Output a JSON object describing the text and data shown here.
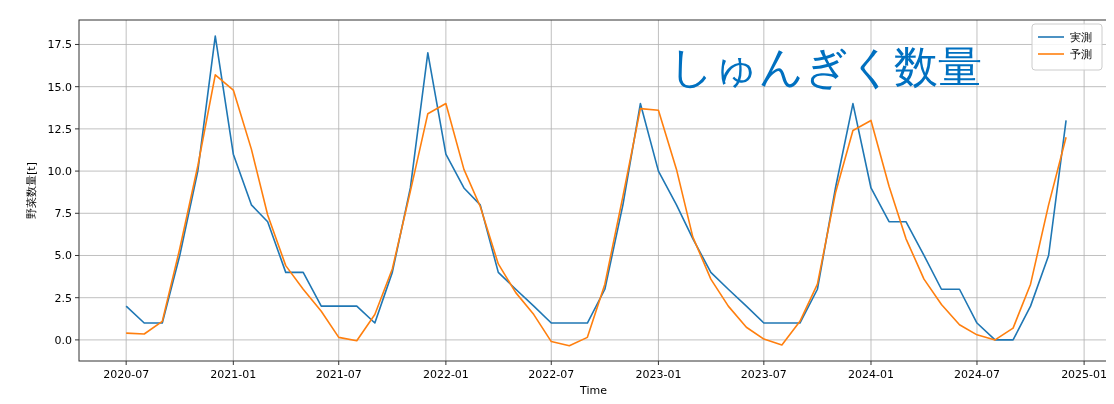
{
  "chart_data": {
    "type": "line",
    "title": "しゅんぎく数量",
    "xlabel": "Time",
    "ylabel": "野菜数量[t]",
    "x": [
      "2020-07",
      "2020-08",
      "2020-09",
      "2020-10",
      "2020-11",
      "2020-12",
      "2021-01",
      "2021-02",
      "2021-03",
      "2021-04",
      "2021-05",
      "2021-06",
      "2021-07",
      "2021-08",
      "2021-09",
      "2021-10",
      "2021-11",
      "2021-12",
      "2022-01",
      "2022-02",
      "2022-03",
      "2022-04",
      "2022-05",
      "2022-06",
      "2022-07",
      "2022-08",
      "2022-09",
      "2022-10",
      "2022-11",
      "2022-12",
      "2023-01",
      "2023-02",
      "2023-03",
      "2023-04",
      "2023-05",
      "2023-06",
      "2023-07",
      "2023-08",
      "2023-09",
      "2023-10",
      "2023-11",
      "2023-12",
      "2024-01",
      "2024-02",
      "2024-03",
      "2024-04",
      "2024-05",
      "2024-06",
      "2024-07",
      "2024-08",
      "2024-09",
      "2024-10",
      "2024-11",
      "2024-12"
    ],
    "series": [
      {
        "name": "実測",
        "color": "#1f77b4",
        "values": [
          2,
          1,
          1,
          5,
          10,
          18,
          11,
          8,
          7,
          4,
          4,
          2,
          2,
          2,
          1,
          4,
          9,
          17,
          11,
          9,
          8,
          4,
          3,
          2,
          1,
          1,
          1,
          3,
          8,
          14,
          10,
          8,
          6,
          4,
          3,
          2,
          1,
          1,
          1,
          3,
          9,
          14,
          9,
          7,
          7,
          5,
          3,
          3,
          1,
          0,
          0,
          2,
          5,
          13
        ]
      },
      {
        "name": "予測",
        "color": "#ff7f0e",
        "values": [
          0.4,
          0.35,
          1.1,
          5.4,
          10.3,
          15.7,
          14.8,
          11.3,
          7.4,
          4.4,
          3.0,
          1.7,
          0.15,
          -0.05,
          1.5,
          4.2,
          8.8,
          13.4,
          14.0,
          10.1,
          7.9,
          4.5,
          2.8,
          1.5,
          -0.1,
          -0.35,
          0.15,
          3.3,
          8.5,
          13.7,
          13.6,
          10.1,
          6.1,
          3.6,
          2.0,
          0.75,
          0.05,
          -0.3,
          1.1,
          3.3,
          8.7,
          12.4,
          13.0,
          9.1,
          6.0,
          3.6,
          2.1,
          0.9,
          0.3,
          0.0,
          0.7,
          3.3,
          8.0,
          12.0
        ]
      }
    ],
    "xlim": [
      "2020-04-11",
      "2025-02-11"
    ],
    "xticks": [
      "2020-07",
      "2021-01",
      "2021-07",
      "2022-01",
      "2022-07",
      "2023-01",
      "2023-07",
      "2024-01",
      "2024-07",
      "2025-01"
    ],
    "ylim": [
      -1.25,
      18.95
    ],
    "yticks": [
      {
        "value": 0,
        "label": "0.0"
      },
      {
        "value": 2.5,
        "label": "2.5"
      },
      {
        "value": 5,
        "label": "5.0"
      },
      {
        "value": 7.5,
        "label": "7.5"
      },
      {
        "value": 10,
        "label": "10.0"
      },
      {
        "value": 12.5,
        "label": "12.5"
      },
      {
        "value": 15,
        "label": "15.0"
      },
      {
        "value": 17.5,
        "label": "17.5"
      }
    ],
    "grid": true,
    "legend": "top right",
    "line_style": "solid",
    "marker": "none"
  }
}
